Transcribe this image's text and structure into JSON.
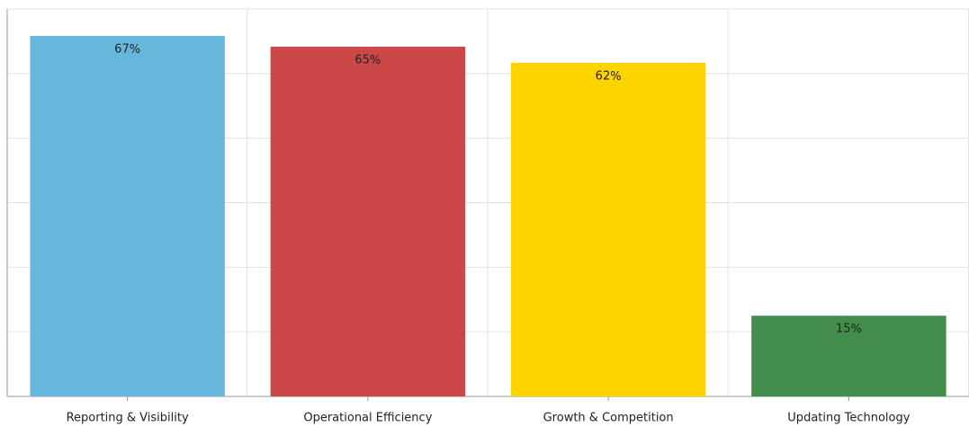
{
  "chart_data": {
    "type": "bar",
    "categories": [
      "Reporting & Visibility",
      "Operational Efficiency",
      "Growth & Competition",
      "Updating Technology"
    ],
    "values": [
      67,
      65,
      62,
      15
    ],
    "colors": [
      "#67b7dc",
      "#cc4748",
      "#fdd400",
      "#448e4d"
    ],
    "ylim": [
      0,
      72
    ],
    "yticks": [
      0,
      12,
      24,
      36,
      48,
      60,
      72
    ],
    "grid": true
  }
}
